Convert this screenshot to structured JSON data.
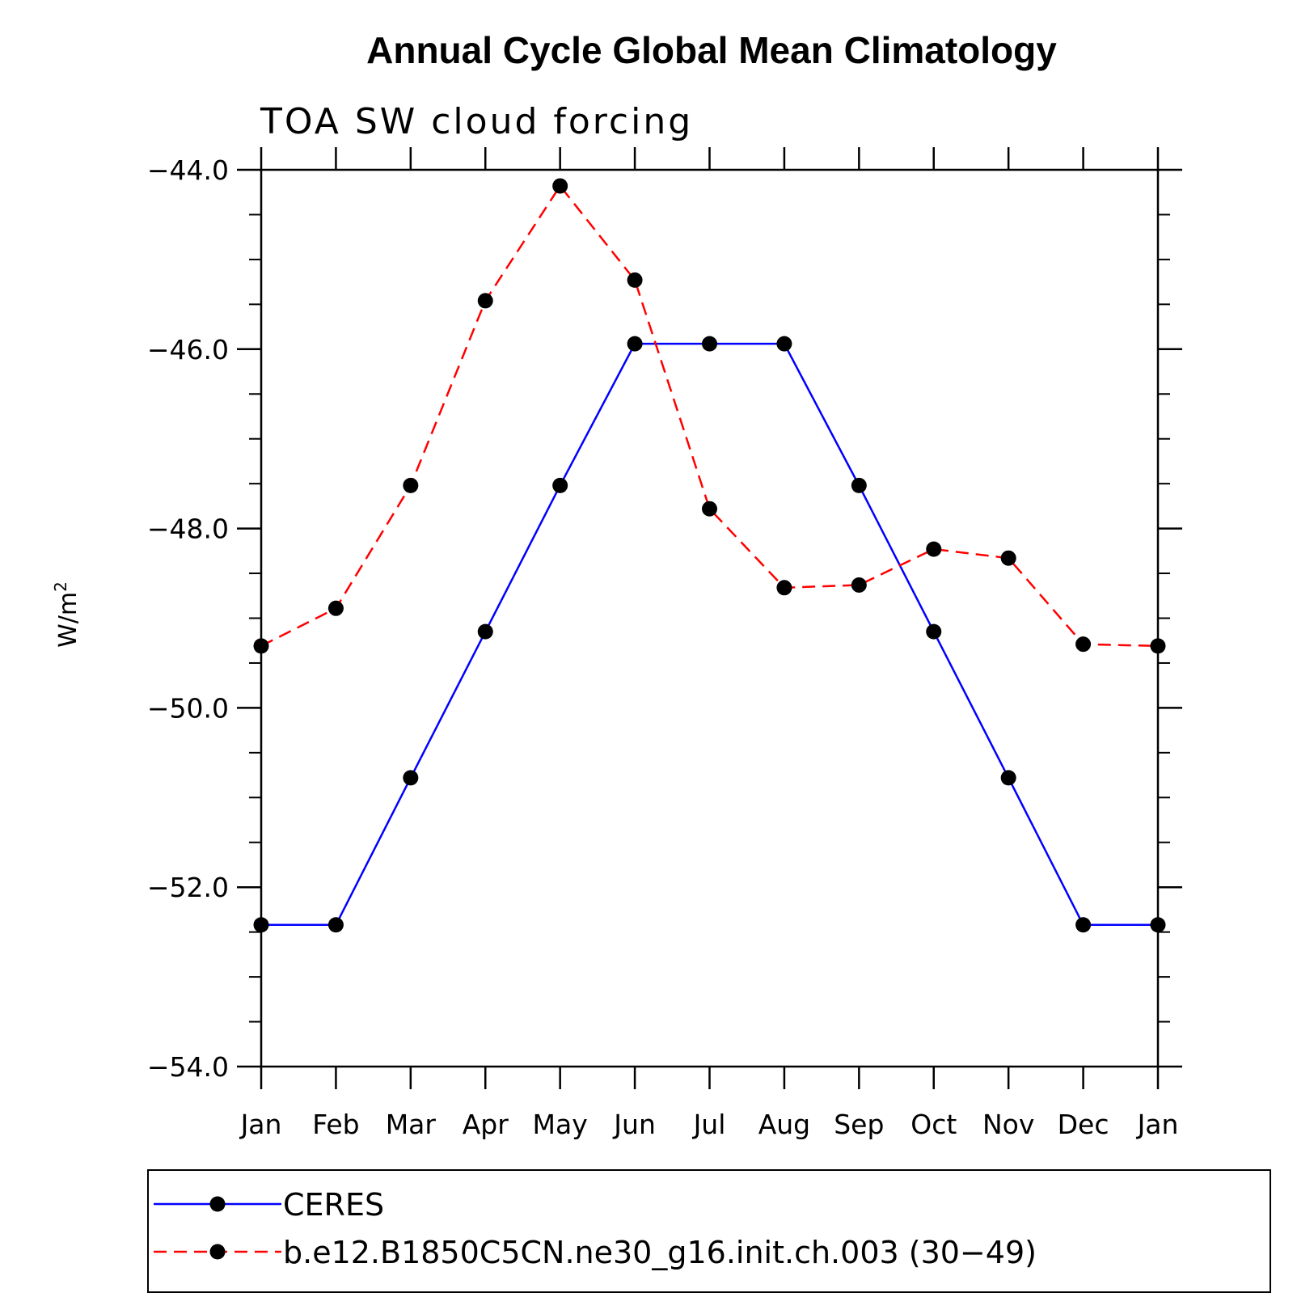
{
  "chart_data": {
    "type": "line",
    "title": "Annual Cycle Global Mean Climatology",
    "subtitle": "TOA SW cloud forcing",
    "ylabel_base": "W/m",
    "ylabel_sup": "2",
    "xlabel": "",
    "categories": [
      "Jan",
      "Feb",
      "Mar",
      "Apr",
      "May",
      "Jun",
      "Jul",
      "Aug",
      "Sep",
      "Oct",
      "Nov",
      "Dec",
      "Jan"
    ],
    "ylim": [
      -54.0,
      -44.0
    ],
    "yticks": [
      -44.0,
      -46.0,
      -48.0,
      -50.0,
      -52.0,
      -54.0
    ],
    "ytick_labels": [
      "−44.0",
      "−46.0",
      "−48.0",
      "−50.0",
      "−52.0",
      "−54.0"
    ],
    "y_minor_step": 0.5,
    "grid": false,
    "legend_position": "bottom",
    "series": [
      {
        "name": "CERES",
        "color": "#0000ff",
        "dash": "solid",
        "marker": "filled-circle",
        "values": [
          -52.42,
          -52.42,
          -50.78,
          -49.15,
          -47.52,
          -45.94,
          -45.94,
          -45.94,
          -47.52,
          -49.15,
          -50.78,
          -52.42,
          -52.42
        ]
      },
      {
        "name": "b.e12.B1850C5CN.ne30_g16.init.ch.003 (30−49)",
        "color": "#ff0000",
        "dash": "dashed",
        "marker": "filled-circle",
        "values": [
          -49.31,
          -48.89,
          -47.52,
          -45.46,
          -44.18,
          -45.23,
          -47.78,
          -48.66,
          -48.63,
          -48.23,
          -48.33,
          -49.29,
          -49.31
        ]
      }
    ]
  }
}
